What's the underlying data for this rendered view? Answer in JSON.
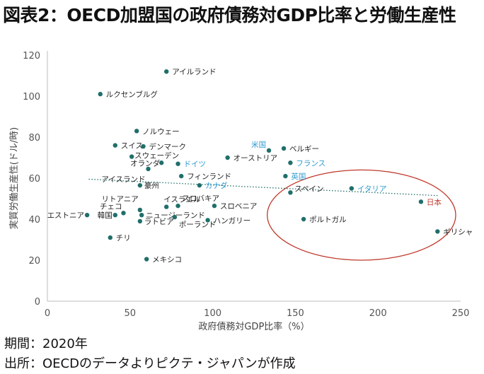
{
  "title": "図表2：OECD加盟国の政府債務対GDP比率と労働生産性",
  "footer": {
    "period": "期間：2020年",
    "source": "出所：OECDのデータよりピクテ・ジャパンが作成"
  },
  "colors": {
    "point": "#1f6f6a",
    "label_default": "#222222",
    "label_highlight": "#2e9ad0",
    "label_japan": "#c0392b",
    "ellipse": "#c0392b",
    "trend": "#1f6f6a"
  },
  "chart_data": {
    "type": "scatter",
    "title": "",
    "xlabel": "政府債務対GDP比率（%）",
    "ylabel": "実質労働生産性(ドル/時)",
    "xlim": [
      0,
      250
    ],
    "ylim": [
      0,
      120
    ],
    "xticks": [
      0,
      50,
      100,
      150,
      200,
      250
    ],
    "yticks": [
      0,
      20,
      40,
      60,
      80,
      100,
      120
    ],
    "grid": false,
    "trendline": {
      "style": "dotted",
      "x": [
        25,
        236
      ],
      "y": [
        59.5,
        51.5
      ]
    },
    "highlight_ellipse": {
      "cx": 190,
      "cy": 42,
      "rx": 57,
      "ry": 22
    },
    "points": [
      {
        "label": "アイルランド",
        "x": 72,
        "y": 112,
        "color": "default"
      },
      {
        "label": "ルクセンブルグ",
        "x": 32,
        "y": 101,
        "color": "default"
      },
      {
        "label": "ノルウェー",
        "x": 54,
        "y": 83,
        "color": "default"
      },
      {
        "label": "スイス",
        "x": 41,
        "y": 76,
        "color": "default"
      },
      {
        "label": "デンマーク",
        "x": 58,
        "y": 75.5,
        "color": "default"
      },
      {
        "label": "スウェーデン",
        "x": 51,
        "y": 70.5,
        "color": "default"
      },
      {
        "label": "オランダ",
        "x": 69,
        "y": 67.5,
        "color": "default"
      },
      {
        "label": "ドイツ",
        "x": 79,
        "y": 67,
        "color": "highlight"
      },
      {
        "label": "アイスランド",
        "x": 61,
        "y": 64.5,
        "color": "default"
      },
      {
        "label": "フィンランド",
        "x": 81,
        "y": 61,
        "color": "default"
      },
      {
        "label": "豪州",
        "x": 56,
        "y": 56.5,
        "color": "default"
      },
      {
        "label": "カナダ",
        "x": 92,
        "y": 56.5,
        "color": "highlight"
      },
      {
        "label": "オーストリア",
        "x": 109,
        "y": 70,
        "color": "default"
      },
      {
        "label": "米国",
        "x": 134,
        "y": 73.5,
        "color": "highlight"
      },
      {
        "label": "ベルギー",
        "x": 143,
        "y": 74.5,
        "color": "default"
      },
      {
        "label": "フランス",
        "x": 147,
        "y": 67.5,
        "color": "highlight"
      },
      {
        "label": "英国",
        "x": 144,
        "y": 61,
        "color": "highlight"
      },
      {
        "label": "イタリア",
        "x": 184,
        "y": 55,
        "color": "highlight"
      },
      {
        "label": "スペイン",
        "x": 147,
        "y": 53,
        "color": "default"
      },
      {
        "label": "日本",
        "x": 226,
        "y": 48.5,
        "color": "japan"
      },
      {
        "label": "ポルトガル",
        "x": 155,
        "y": 40,
        "color": "default"
      },
      {
        "label": "ギリシャ",
        "x": 236,
        "y": 34,
        "color": "default"
      },
      {
        "label": "リトアニア",
        "x": 56,
        "y": 44.5,
        "color": "default"
      },
      {
        "label": "イスラエル",
        "x": 72,
        "y": 46,
        "color": "default"
      },
      {
        "label": "スロバキア",
        "x": 79,
        "y": 46.5,
        "color": "default"
      },
      {
        "label": "スロベニア",
        "x": 101,
        "y": 46.5,
        "color": "default"
      },
      {
        "label": "チェコ",
        "x": 46,
        "y": 43,
        "color": "default"
      },
      {
        "label": "韓国",
        "x": 41,
        "y": 42,
        "color": "default"
      },
      {
        "label": "エストニア",
        "x": 24,
        "y": 42,
        "color": "default"
      },
      {
        "label": "ニュージーランド",
        "x": 57,
        "y": 42,
        "color": "default"
      },
      {
        "label": "ラトビア",
        "x": 56,
        "y": 39,
        "color": "default"
      },
      {
        "label": "ポーランド",
        "x": 77,
        "y": 41,
        "color": "default"
      },
      {
        "label": "ハンガリー",
        "x": 97,
        "y": 39.5,
        "color": "default"
      },
      {
        "label": "チリ",
        "x": 38,
        "y": 31,
        "color": "default"
      },
      {
        "label": "メキシコ",
        "x": 60,
        "y": 20.5,
        "color": "default"
      }
    ]
  }
}
